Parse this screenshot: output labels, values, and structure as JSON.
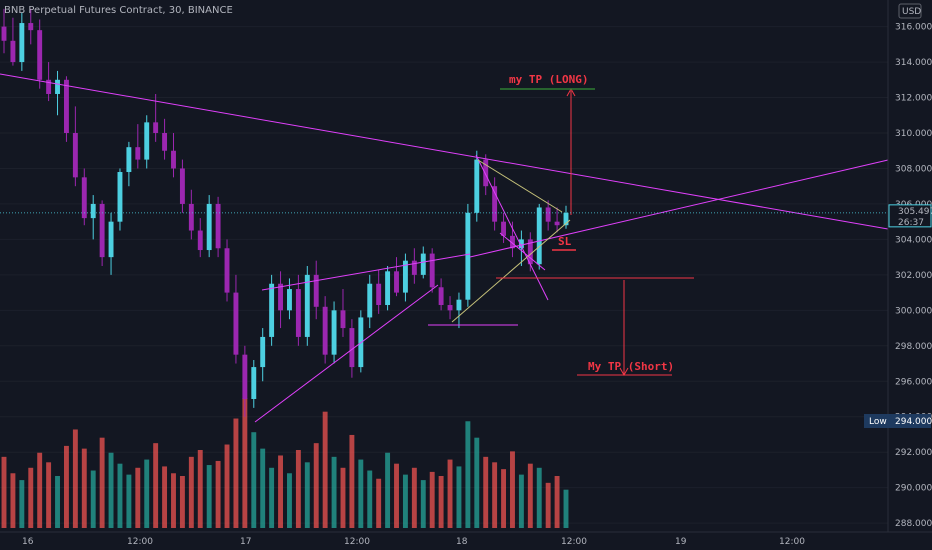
{
  "header": {
    "title": "BNB Perpetual Futures Contract, 30, BINANCE",
    "currency": "USD"
  },
  "price_axis": {
    "ticks": [
      "316.000",
      "314.000",
      "312.000",
      "310.000",
      "308.000",
      "306.000",
      "304.000",
      "302.000",
      "300.000",
      "298.000",
      "296.000",
      "294.000",
      "292.000",
      "290.000",
      "288.000"
    ],
    "ymin": 287.5,
    "ymax": 317.5,
    "current_price": "305.497",
    "countdown": "26:37",
    "low_label": "Low",
    "low_value": "294.000"
  },
  "time_axis": {
    "labels": [
      "16",
      "12:00",
      "17",
      "12:00",
      "18",
      "12:00",
      "19",
      "12:00"
    ]
  },
  "annotations": {
    "tp_long": "my TP (LONG)",
    "tp_short": "My TP (Short)",
    "sl": "SL"
  },
  "colors": {
    "background": "#131722",
    "bull": "#4dd0e1",
    "bear": "#9c27b0",
    "vol_bull": "#26a69a",
    "vol_bear": "#ef5350",
    "trendline": "#e040fb",
    "annotation": "#f23645",
    "wedge": "#c6c27a"
  },
  "chart_data": {
    "type": "candlestick",
    "symbol": "BNB Perpetual Futures Contract",
    "interval": "30",
    "exchange": "BINANCE",
    "last_price": 305.497,
    "ohlc": [
      [
        316.0,
        317.0,
        314.5,
        315.2
      ],
      [
        315.2,
        316.5,
        313.8,
        314.0
      ],
      [
        314.0,
        316.8,
        313.5,
        316.2
      ],
      [
        316.2,
        317.0,
        315.0,
        315.8
      ],
      [
        315.8,
        316.4,
        312.5,
        313.0
      ],
      [
        313.0,
        314.0,
        311.8,
        312.2
      ],
      [
        312.2,
        313.5,
        311.0,
        313.0
      ],
      [
        313.0,
        313.2,
        309.5,
        310.0
      ],
      [
        310.0,
        311.5,
        307.0,
        307.5
      ],
      [
        307.5,
        308.0,
        304.8,
        305.2
      ],
      [
        305.2,
        306.5,
        304.0,
        306.0
      ],
      [
        306.0,
        306.2,
        302.5,
        303.0
      ],
      [
        303.0,
        305.5,
        302.0,
        305.0
      ],
      [
        305.0,
        308.0,
        304.5,
        307.8
      ],
      [
        307.8,
        309.5,
        307.0,
        309.2
      ],
      [
        309.2,
        310.5,
        308.0,
        308.5
      ],
      [
        308.5,
        311.0,
        308.0,
        310.6
      ],
      [
        310.6,
        312.2,
        309.5,
        310.0
      ],
      [
        310.0,
        310.8,
        308.5,
        309.0
      ],
      [
        309.0,
        310.0,
        307.5,
        308.0
      ],
      [
        308.0,
        308.5,
        305.5,
        306.0
      ],
      [
        306.0,
        306.8,
        304.0,
        304.5
      ],
      [
        304.5,
        305.2,
        303.0,
        303.4
      ],
      [
        303.4,
        306.5,
        303.0,
        306.0
      ],
      [
        306.0,
        306.4,
        303.0,
        303.5
      ],
      [
        303.5,
        304.0,
        300.5,
        301.0
      ],
      [
        301.0,
        302.0,
        297.0,
        297.5
      ],
      [
        297.5,
        298.0,
        294.0,
        295.0
      ],
      [
        295.0,
        297.2,
        294.5,
        296.8
      ],
      [
        296.8,
        299.0,
        296.0,
        298.5
      ],
      [
        298.5,
        302.0,
        298.0,
        301.5
      ],
      [
        301.5,
        302.2,
        299.0,
        300.0
      ],
      [
        300.0,
        301.8,
        299.5,
        301.2
      ],
      [
        301.2,
        302.0,
        298.0,
        298.5
      ],
      [
        298.5,
        302.5,
        298.0,
        302.0
      ],
      [
        302.0,
        302.8,
        299.5,
        300.2
      ],
      [
        300.2,
        300.8,
        297.0,
        297.5
      ],
      [
        297.5,
        300.5,
        297.0,
        300.0
      ],
      [
        300.0,
        301.2,
        298.5,
        299.0
      ],
      [
        299.0,
        299.5,
        296.2,
        296.8
      ],
      [
        296.8,
        300.0,
        296.5,
        299.6
      ],
      [
        299.6,
        302.0,
        299.0,
        301.5
      ],
      [
        301.5,
        302.3,
        299.8,
        300.3
      ],
      [
        300.3,
        302.5,
        300.0,
        302.2
      ],
      [
        302.2,
        303.0,
        300.8,
        301.0
      ],
      [
        301.0,
        303.2,
        300.5,
        302.8
      ],
      [
        302.8,
        303.5,
        301.5,
        302.0
      ],
      [
        302.0,
        303.6,
        301.8,
        303.2
      ],
      [
        303.2,
        303.5,
        301.0,
        301.3
      ],
      [
        301.3,
        301.8,
        300.0,
        300.3
      ],
      [
        300.3,
        300.8,
        299.5,
        300.0
      ],
      [
        300.0,
        301.0,
        299.0,
        300.6
      ],
      [
        300.6,
        306.0,
        300.2,
        305.5
      ],
      [
        305.5,
        309.0,
        305.0,
        308.5
      ],
      [
        308.5,
        308.8,
        306.5,
        307.0
      ],
      [
        307.0,
        307.5,
        304.5,
        305.0
      ],
      [
        305.0,
        305.5,
        303.8,
        304.2
      ],
      [
        304.2,
        305.0,
        303.0,
        303.5
      ],
      [
        303.5,
        304.5,
        302.5,
        304.0
      ],
      [
        304.0,
        304.4,
        302.2,
        302.6
      ],
      [
        302.6,
        306.0,
        302.3,
        305.8
      ],
      [
        305.8,
        306.2,
        304.5,
        305.0
      ],
      [
        305.0,
        305.8,
        304.4,
        304.8
      ],
      [
        304.8,
        305.9,
        304.6,
        305.5
      ]
    ],
    "volume": [
      52,
      40,
      35,
      44,
      55,
      48,
      38,
      60,
      72,
      58,
      42,
      66,
      55,
      47,
      39,
      44,
      50,
      62,
      45,
      40,
      38,
      52,
      57,
      46,
      49,
      61,
      80,
      95,
      70,
      58,
      44,
      53,
      40,
      57,
      48,
      62,
      85,
      52,
      44,
      68,
      50,
      42,
      36,
      55,
      47,
      39,
      44,
      35,
      41,
      38,
      50,
      45,
      78,
      66,
      52,
      48,
      43,
      56,
      39,
      47,
      44,
      33,
      38,
      28
    ]
  }
}
